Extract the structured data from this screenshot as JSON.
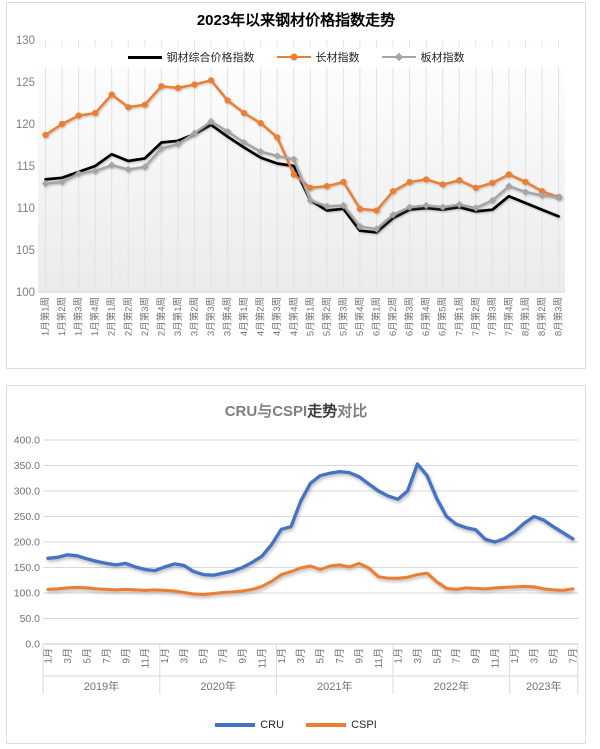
{
  "accent_colors": {
    "composite_black": "#000000",
    "long_orange": "#ED7D31",
    "flat_gray": "#A5A5A5",
    "cru_blue": "#4472C4",
    "cspi_orange": "#ED7D31"
  },
  "chart_data": [
    {
      "type": "line",
      "title": "2023年以来钢材价格指数走势",
      "categories": [
        "1月第1周",
        "1月第2周",
        "1月第3周",
        "1月第4周",
        "2月第1周",
        "2月第2周",
        "2月第3周",
        "2月第4周",
        "3月第1周",
        "3月第2周",
        "3月第3周",
        "3月第4周",
        "4月第1周",
        "4月第2周",
        "4月第3周",
        "4月第4周",
        "5月第1周",
        "5月第2周",
        "5月第3周",
        "5月第4周",
        "6月第1周",
        "6月第2周",
        "6月第3周",
        "6月第4周",
        "6月第5周",
        "7月第1周",
        "7月第2周",
        "7月第3周",
        "7月第4周",
        "8月第1周",
        "8月第2周",
        "8月第3周"
      ],
      "series": [
        {
          "id": "composite-index",
          "name": "钢材综合价格指数",
          "color": "#000000",
          "marker": "none",
          "values": [
            113.4,
            113.6,
            114.3,
            115.0,
            116.4,
            115.6,
            115.9,
            117.8,
            118.0,
            118.8,
            119.9,
            118.5,
            117.2,
            116.0,
            115.3,
            115.0,
            110.9,
            109.7,
            109.9,
            107.3,
            107.1,
            108.8,
            109.8,
            110.0,
            109.8,
            110.1,
            109.6,
            109.8,
            111.4,
            110.6,
            109.8,
            109.0
          ]
        },
        {
          "id": "long-products-index",
          "name": "长材指数",
          "color": "#ED7D31",
          "marker": "circle",
          "values": [
            118.7,
            120.0,
            121.0,
            121.3,
            123.5,
            122.0,
            122.3,
            124.5,
            124.3,
            124.7,
            125.2,
            122.8,
            121.3,
            120.1,
            118.4,
            114.0,
            112.4,
            112.6,
            113.1,
            109.9,
            109.7,
            112.0,
            113.1,
            113.4,
            112.8,
            113.3,
            112.4,
            113.0,
            114.0,
            113.1,
            112.0,
            111.3
          ]
        },
        {
          "id": "flat-products-index",
          "name": "板材指数",
          "color": "#A5A5A5",
          "marker": "diamond",
          "values": [
            112.9,
            113.1,
            114.1,
            114.4,
            115.1,
            114.6,
            114.9,
            117.1,
            117.6,
            118.9,
            120.3,
            119.1,
            117.8,
            116.7,
            116.2,
            115.8,
            110.9,
            110.2,
            110.3,
            107.8,
            107.5,
            109.2,
            110.1,
            110.3,
            110.1,
            110.4,
            110.0,
            110.9,
            112.6,
            111.9,
            111.5,
            111.3
          ]
        }
      ],
      "ylim": [
        100,
        130
      ],
      "ytick_step": 5,
      "ytick_format": "integer",
      "grid": "vertical",
      "legend_position": "top-overlay"
    },
    {
      "type": "line",
      "title": "CRU与CSPI走势对比",
      "title_parts": [
        {
          "text": "CRU与CSPI",
          "tone": "dim"
        },
        {
          "text": "走势",
          "tone": "dark"
        },
        {
          "text": "对比",
          "tone": "dim"
        }
      ],
      "x_axis": {
        "years": [
          {
            "label": "2019年",
            "n_months": 12,
            "month_labels": [
              "1月",
              "3月",
              "5月",
              "7月",
              "9月",
              "11月"
            ]
          },
          {
            "label": "2020年",
            "n_months": 12,
            "month_labels": [
              "1月",
              "3月",
              "5月",
              "7月",
              "9月",
              "11月"
            ]
          },
          {
            "label": "2021年",
            "n_months": 12,
            "month_labels": [
              "1月",
              "3月",
              "5月",
              "7月",
              "9月",
              "11月"
            ]
          },
          {
            "label": "2022年",
            "n_months": 12,
            "month_labels": [
              "1月",
              "3月",
              "5月",
              "7月",
              "9月",
              "11月"
            ]
          },
          {
            "label": "2023年",
            "n_months": 7,
            "month_labels": [
              "1月",
              "3月",
              "5月",
              "7月"
            ]
          }
        ]
      },
      "series": [
        {
          "id": "cru",
          "name": "CRU",
          "color": "#4472C4",
          "marker": "none",
          "values": [
            168,
            170,
            175,
            173,
            167,
            162,
            158,
            155,
            158,
            151,
            146,
            144,
            151,
            157,
            154,
            142,
            136,
            135,
            139,
            143,
            150,
            160,
            172,
            195,
            225,
            230,
            280,
            315,
            330,
            335,
            338,
            336,
            328,
            314,
            300,
            290,
            284,
            300,
            353,
            330,
            285,
            250,
            235,
            228,
            224,
            205,
            200,
            207,
            220,
            237,
            250,
            243,
            230,
            218,
            206
          ]
        },
        {
          "id": "cspi",
          "name": "CSPI",
          "color": "#ED7D31",
          "marker": "none",
          "values": [
            107,
            108,
            110,
            111,
            110,
            108,
            107,
            106,
            107,
            106,
            105,
            106,
            105,
            104,
            101,
            98,
            97,
            99,
            101,
            102,
            104,
            107,
            113,
            123,
            136,
            142,
            149,
            153,
            146,
            153,
            155,
            151,
            158,
            149,
            132,
            129,
            129,
            131,
            136,
            139,
            122,
            109,
            107,
            110,
            109,
            108,
            110,
            111,
            112,
            113,
            112,
            108,
            106,
            105,
            108
          ]
        }
      ],
      "ylim": [
        0,
        400
      ],
      "ytick_step": 50,
      "ytick_format": "decimal1",
      "grid": "horizontal",
      "legend_position": "bottom"
    }
  ]
}
